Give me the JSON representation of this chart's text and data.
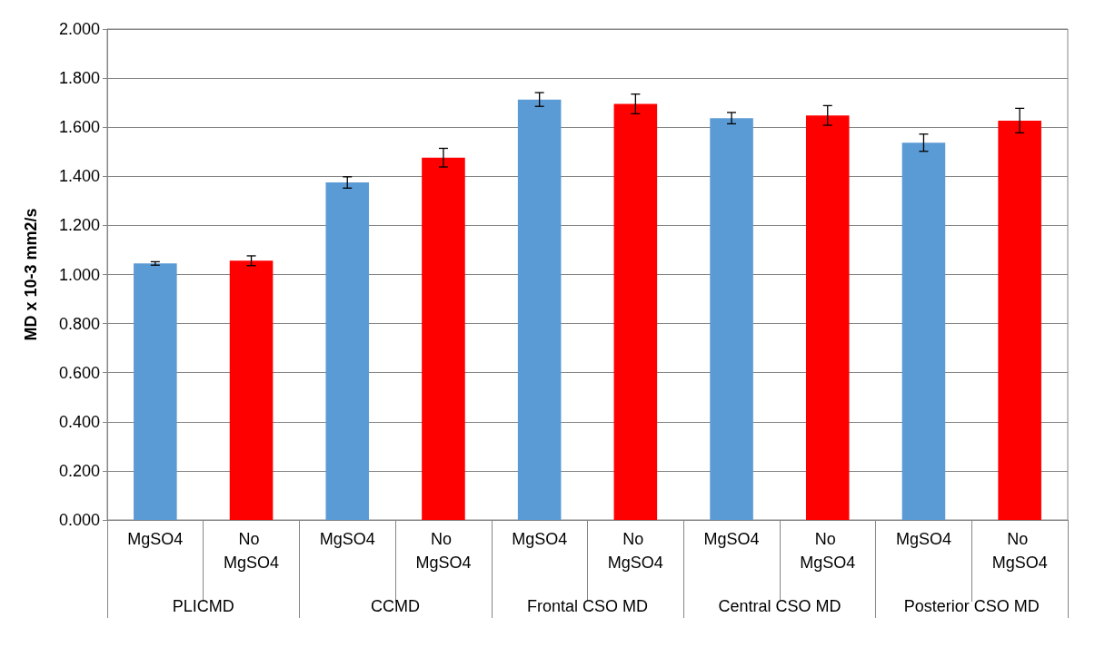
{
  "chart_data": {
    "type": "bar",
    "ylabel": "MD x 10-3 mm2/s",
    "categories": [
      "MgSO4",
      "No MgSO4",
      "MgSO4",
      "No MgSO4",
      "MgSO4",
      "No MgSO4",
      "MgSO4",
      "No MgSO4",
      "MgSO4",
      "No MgSO4"
    ],
    "values": [
      1.045,
      1.056,
      1.375,
      1.476,
      1.713,
      1.695,
      1.637,
      1.648,
      1.537,
      1.627
    ],
    "errors": [
      0.007,
      0.02,
      0.023,
      0.038,
      0.028,
      0.04,
      0.023,
      0.04,
      0.035,
      0.05
    ],
    "colors": [
      "#5b9bd5",
      "#ff0000",
      "#5b9bd5",
      "#ff0000",
      "#5b9bd5",
      "#ff0000",
      "#5b9bd5",
      "#ff0000",
      "#5b9bd5",
      "#ff0000"
    ],
    "annotations": [
      "PLICMD",
      "CCMD",
      "Frontal CSO MD",
      "Central CSO MD",
      "Posterior CSO MD"
    ],
    "ylim": [
      0,
      2
    ],
    "yticks": [
      {
        "value": 0,
        "label": "0.000"
      },
      {
        "value": 0.2,
        "label": "0.200"
      },
      {
        "value": 0.4,
        "label": "0.400"
      },
      {
        "value": 0.6,
        "label": "0.600"
      },
      {
        "value": 0.8,
        "label": "0.800"
      },
      {
        "value": 1,
        "label": "1.000"
      },
      {
        "value": 1.2,
        "label": "1.200"
      },
      {
        "value": 1.4,
        "label": "1.400"
      },
      {
        "value": 1.6,
        "label": "1.600"
      },
      {
        "value": 1.8,
        "label": "1.800"
      },
      {
        "value": 2,
        "label": "2.000"
      }
    ],
    "grid": "y"
  }
}
